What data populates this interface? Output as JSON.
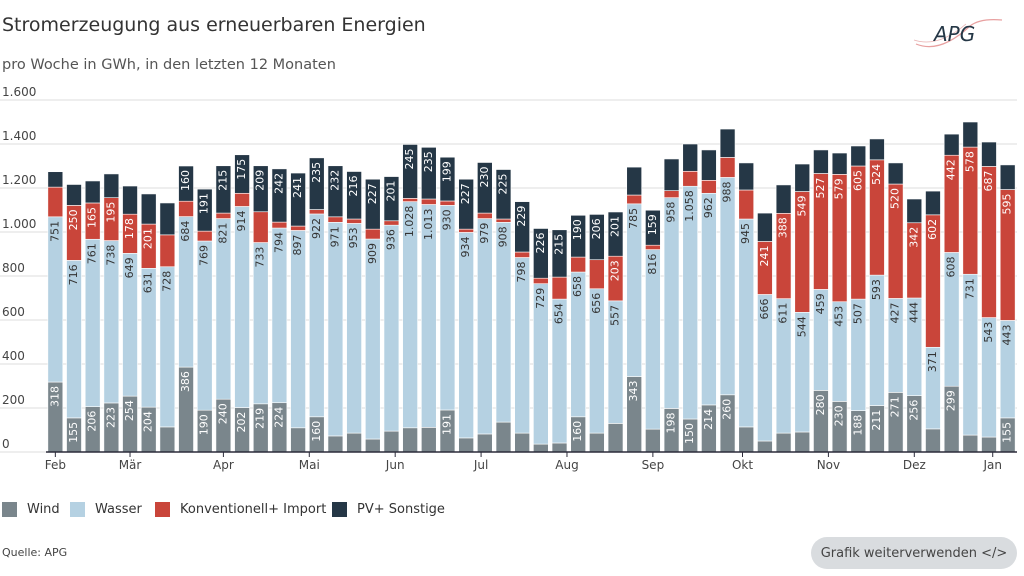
{
  "header": {
    "title": "Stromerzeugung aus erneuerbaren Energien",
    "subtitle": "pro Woche in GWh, in den letzten 12 Monaten",
    "logo_text": "APG"
  },
  "footer": {
    "source": "Quelle: APG",
    "reuse_button": "Grafik weiterverwenden </>"
  },
  "colors": {
    "Wind": "#7a868c",
    "Wasser": "#b5d1e2",
    "Konventionell+ Import": "#c9453a",
    "PV+ Sonstige": "#253746"
  },
  "chart_data": {
    "type": "bar",
    "stacked": true,
    "ylim": [
      0,
      1600
    ],
    "yticks": [
      0,
      200,
      400,
      600,
      800,
      1000,
      1200,
      1400,
      1600
    ],
    "ytick_labels": [
      "0",
      "200",
      "400",
      "600",
      "800",
      "1.000",
      "1.200",
      "1.400",
      "1.600"
    ],
    "grid": true,
    "legend": "bottom",
    "months": [
      {
        "label": "Feb",
        "week": 0
      },
      {
        "label": "Mär",
        "week": 4
      },
      {
        "label": "Apr",
        "week": 9
      },
      {
        "label": "Mai",
        "week": 13.6
      },
      {
        "label": "Jun",
        "week": 18.2
      },
      {
        "label": "Jul",
        "week": 22.8
      },
      {
        "label": "Aug",
        "week": 27.4
      },
      {
        "label": "Sep",
        "week": 32
      },
      {
        "label": "Okt",
        "week": 36.8
      },
      {
        "label": "Nov",
        "week": 41.4
      },
      {
        "label": "Dez",
        "week": 46
      },
      {
        "label": "Jan",
        "week": 50.2
      }
    ],
    "series": [
      {
        "name": "Wind",
        "values": [
          318,
          155,
          206,
          223,
          254,
          204,
          114,
          386,
          190,
          240,
          202,
          219,
          224,
          110,
          160,
          73,
          86,
          59,
          95,
          110,
          112,
          191,
          64,
          82,
          136,
          86,
          36,
          41,
          160,
          86,
          130,
          343,
          104,
          198,
          150,
          214,
          260,
          114,
          50,
          86,
          91,
          280,
          230,
          188,
          211,
          271,
          256,
          105,
          299,
          77,
          68,
          155
        ]
      },
      {
        "name": "Wasser",
        "values": [
          751,
          716,
          761,
          738,
          649,
          631,
          728,
          684,
          769,
          821,
          914,
          733,
          794,
          897,
          922,
          971,
          953,
          909,
          936,
          1028,
          1013,
          930,
          934,
          979,
          908,
          798,
          729,
          654,
          658,
          656,
          557,
          785,
          816,
          958,
          1058,
          962,
          988,
          945,
          666,
          611,
          544,
          459,
          453,
          507,
          593,
          427,
          444,
          371,
          608,
          731,
          543,
          443
        ]
      },
      {
        "name": "Konventionell+ Import",
        "values": [
          135,
          250,
          165,
          195,
          178,
          201,
          145,
          70,
          45,
          25,
          60,
          140,
          27,
          20,
          20,
          25,
          20,
          45,
          20,
          15,
          25,
          20,
          15,
          25,
          15,
          25,
          25,
          100,
          68,
          132,
          203,
          40,
          20,
          32,
          68,
          59,
          91,
          132,
          241,
          388,
          549,
          527,
          579,
          605,
          524,
          520,
          342,
          602,
          442,
          578,
          687,
          595
        ]
      },
      {
        "name": "PV+ Sonstige",
        "values": [
          70,
          95,
          100,
          108,
          128,
          137,
          145,
          160,
          191,
          215,
          175,
          209,
          242,
          241,
          235,
          232,
          216,
          227,
          201,
          245,
          235,
          199,
          227,
          230,
          225,
          229,
          226,
          215,
          190,
          206,
          201,
          127,
          159,
          144,
          124,
          138,
          129,
          123,
          129,
          129,
          125,
          107,
          97,
          91,
          95,
          96,
          108,
          108,
          96,
          114,
          111,
          112
        ]
      }
    ]
  }
}
